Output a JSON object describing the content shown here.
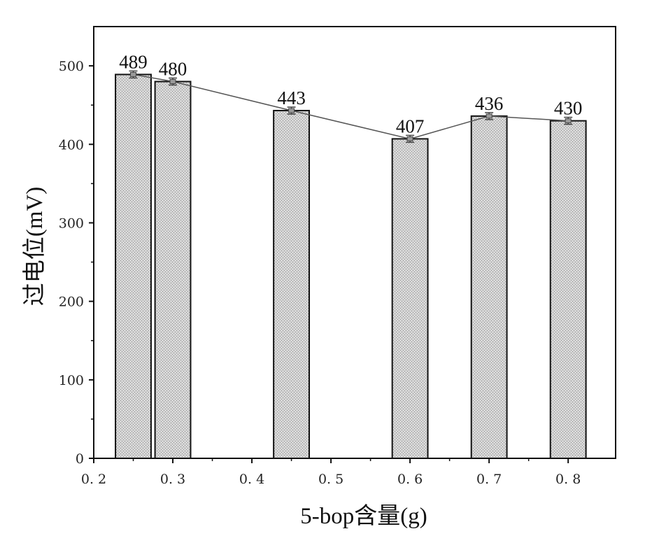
{
  "chart_data": {
    "type": "bar",
    "xlabel": "5-bop含量(g)",
    "ylabel": "过电位(mV)",
    "xlim": [
      0.2,
      0.86
    ],
    "ylim": [
      0,
      550
    ],
    "x_ticks": [
      0.2,
      0.3,
      0.4,
      0.5,
      0.6,
      0.7,
      0.8
    ],
    "x_tick_labels": [
      "0. 2",
      "0. 3",
      "0. 4",
      "0. 5",
      "0. 6",
      "0. 7",
      "0. 8"
    ],
    "y_ticks": [
      0,
      100,
      200,
      300,
      400,
      500
    ],
    "y_tick_labels": [
      "0",
      "100",
      "200",
      "300",
      "400",
      "500"
    ],
    "x": [
      0.25,
      0.3,
      0.45,
      0.6,
      0.7,
      0.8
    ],
    "values": [
      489,
      480,
      443,
      407,
      436,
      430
    ],
    "data_labels": [
      "489",
      "480",
      "443",
      "407",
      "436",
      "430"
    ],
    "bar_width": 0.045,
    "connecting_line": true,
    "error_bars": true,
    "grid": false,
    "legend": "none",
    "colors": {
      "bar_fill": "#c8c8c8",
      "bar_stroke": "#111111",
      "line": "#555555"
    }
  }
}
